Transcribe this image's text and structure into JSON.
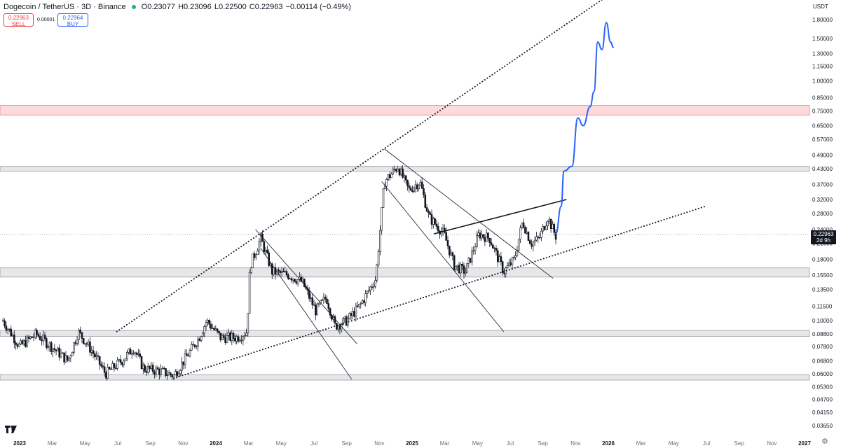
{
  "header": {
    "symbol": "Dogecoin / TetherUS · 3D · Binance",
    "open": "O0.23077",
    "high": "H0.23096",
    "low": "L0.22500",
    "close": "C0.22963",
    "change": "−0.00114 (−0.49%)"
  },
  "trade": {
    "sell_price": "0.22963",
    "sell_label": "SELL",
    "spread": "0.00001",
    "buy_price": "0.22964",
    "buy_label": "BUY"
  },
  "currency": "USDT",
  "last_price": {
    "value": "0.22963",
    "countdown": "2d 9h"
  },
  "colors": {
    "candle": "#131722",
    "projection": "#2962ff",
    "resistance_zone": "#f23645",
    "zone": "#787b86"
  },
  "chart_data": {
    "type": "candlestick",
    "title": "",
    "y_scale": "log",
    "y_ticks": [
      "1.80000",
      "1.50000",
      "1.30000",
      "1.15000",
      "1.00000",
      "0.85000",
      "0.75000",
      "0.65000",
      "0.57000",
      "0.49000",
      "0.43000",
      "0.37000",
      "0.32000",
      "0.28000",
      "0.24000",
      "0.21000",
      "0.18000",
      "0.15500",
      "0.13500",
      "0.11500",
      "0.10000",
      "0.08800",
      "0.07800",
      "0.06800",
      "0.06000",
      "0.05300",
      "0.04700",
      "0.04150",
      "0.03650"
    ],
    "x_ticks": [
      {
        "label": "2023",
        "year": true
      },
      {
        "label": "Mar"
      },
      {
        "label": "May"
      },
      {
        "label": "Jul"
      },
      {
        "label": "Sep"
      },
      {
        "label": "Nov"
      },
      {
        "label": "2024",
        "year": true
      },
      {
        "label": "Mar"
      },
      {
        "label": "May"
      },
      {
        "label": "Jul"
      },
      {
        "label": "Sep"
      },
      {
        "label": "Nov"
      },
      {
        "label": "2025",
        "year": true
      },
      {
        "label": "Mar"
      },
      {
        "label": "May"
      },
      {
        "label": "Jul"
      },
      {
        "label": "Sep"
      },
      {
        "label": "Nov"
      },
      {
        "label": "2026",
        "year": true
      },
      {
        "label": "Mar"
      },
      {
        "label": "May"
      },
      {
        "label": "Jul"
      },
      {
        "label": "Sep"
      },
      {
        "label": "Nov"
      },
      {
        "label": "2027",
        "year": true
      }
    ],
    "price_path": [
      [
        "2022-12-01",
        0.1
      ],
      [
        "2023-01-01",
        0.078
      ],
      [
        "2023-02-01",
        0.088
      ],
      [
        "2023-03-01",
        0.078
      ],
      [
        "2023-04-01",
        0.068
      ],
      [
        "2023-04-20",
        0.09
      ],
      [
        "2023-05-15",
        0.075
      ],
      [
        "2023-06-10",
        0.06
      ],
      [
        "2023-07-10",
        0.068
      ],
      [
        "2023-08-01",
        0.077
      ],
      [
        "2023-08-20",
        0.063
      ],
      [
        "2023-09-15",
        0.062
      ],
      [
        "2023-10-15",
        0.059
      ],
      [
        "2023-11-10",
        0.072
      ],
      [
        "2023-12-01",
        0.085
      ],
      [
        "2023-12-15",
        0.1
      ],
      [
        "2024-01-10",
        0.085
      ],
      [
        "2024-02-10",
        0.085
      ],
      [
        "2024-02-28",
        0.09
      ],
      [
        "2024-03-05",
        0.17
      ],
      [
        "2024-03-25",
        0.22
      ],
      [
        "2024-04-15",
        0.16
      ],
      [
        "2024-05-15",
        0.155
      ],
      [
        "2024-06-10",
        0.145
      ],
      [
        "2024-07-05",
        0.11
      ],
      [
        "2024-07-25",
        0.125
      ],
      [
        "2024-08-10",
        0.095
      ],
      [
        "2024-09-01",
        0.1
      ],
      [
        "2024-09-25",
        0.115
      ],
      [
        "2024-10-25",
        0.15
      ],
      [
        "2024-11-10",
        0.38
      ],
      [
        "2024-12-05",
        0.44
      ],
      [
        "2024-12-25",
        0.35
      ],
      [
        "2025-01-15",
        0.38
      ],
      [
        "2025-02-01",
        0.27
      ],
      [
        "2025-03-01",
        0.23
      ],
      [
        "2025-03-20",
        0.17
      ],
      [
        "2025-04-10",
        0.16
      ],
      [
        "2025-05-05",
        0.23
      ],
      [
        "2025-05-25",
        0.22
      ],
      [
        "2025-06-20",
        0.16
      ],
      [
        "2025-07-10",
        0.18
      ],
      [
        "2025-07-25",
        0.26
      ],
      [
        "2025-08-10",
        0.21
      ],
      [
        "2025-08-25",
        0.22
      ],
      [
        "2025-09-10",
        0.27
      ],
      [
        "2025-09-25",
        0.225
      ]
    ],
    "projection": [
      [
        "2025-09-25",
        0.23
      ],
      [
        "2025-10-05",
        0.3
      ],
      [
        "2025-10-10",
        0.42
      ],
      [
        "2025-10-25",
        0.44
      ],
      [
        "2025-11-05",
        0.7
      ],
      [
        "2025-11-15",
        0.65
      ],
      [
        "2025-11-28",
        0.78
      ],
      [
        "2025-12-05",
        0.9
      ],
      [
        "2025-12-12",
        1.45
      ],
      [
        "2025-12-20",
        1.35
      ],
      [
        "2025-12-28",
        1.75
      ],
      [
        "2026-01-05",
        1.45
      ],
      [
        "2026-01-10",
        1.38
      ]
    ],
    "zones": [
      {
        "low": 0.72,
        "high": 0.79,
        "kind": "resistance"
      },
      {
        "low": 0.42,
        "high": 0.44,
        "kind": "neutral"
      },
      {
        "low": 0.152,
        "high": 0.166,
        "kind": "neutral"
      },
      {
        "low": 0.086,
        "high": 0.091,
        "kind": "neutral"
      },
      {
        "low": 0.0565,
        "high": 0.0595,
        "kind": "neutral"
      }
    ],
    "trendlines": [
      {
        "style": "dotted",
        "from": [
          "2023-07-01",
          0.09
        ],
        "to": [
          "2026-03-01",
          2.8
        ]
      },
      {
        "style": "dotted",
        "from": [
          "2023-10-15",
          0.0575
        ],
        "to": [
          "2026-07-01",
          0.3
        ]
      },
      {
        "style": "solid",
        "from": [
          "2025-02-10",
          0.23
        ],
        "to": [
          "2025-10-15",
          0.32
        ]
      },
      {
        "style": "thin",
        "from": [
          "2024-03-15",
          0.24
        ],
        "to": [
          "2024-09-20",
          0.08
        ]
      },
      {
        "style": "thin",
        "from": [
          "2024-03-25",
          0.2
        ],
        "to": [
          "2024-09-10",
          0.057
        ]
      },
      {
        "style": "thin",
        "from": [
          "2024-11-10",
          0.52
        ],
        "to": [
          "2025-09-20",
          0.15
        ]
      },
      {
        "style": "thin",
        "from": [
          "2024-11-05",
          0.38
        ],
        "to": [
          "2025-06-20",
          0.09
        ]
      }
    ],
    "last_price": 0.22963
  }
}
